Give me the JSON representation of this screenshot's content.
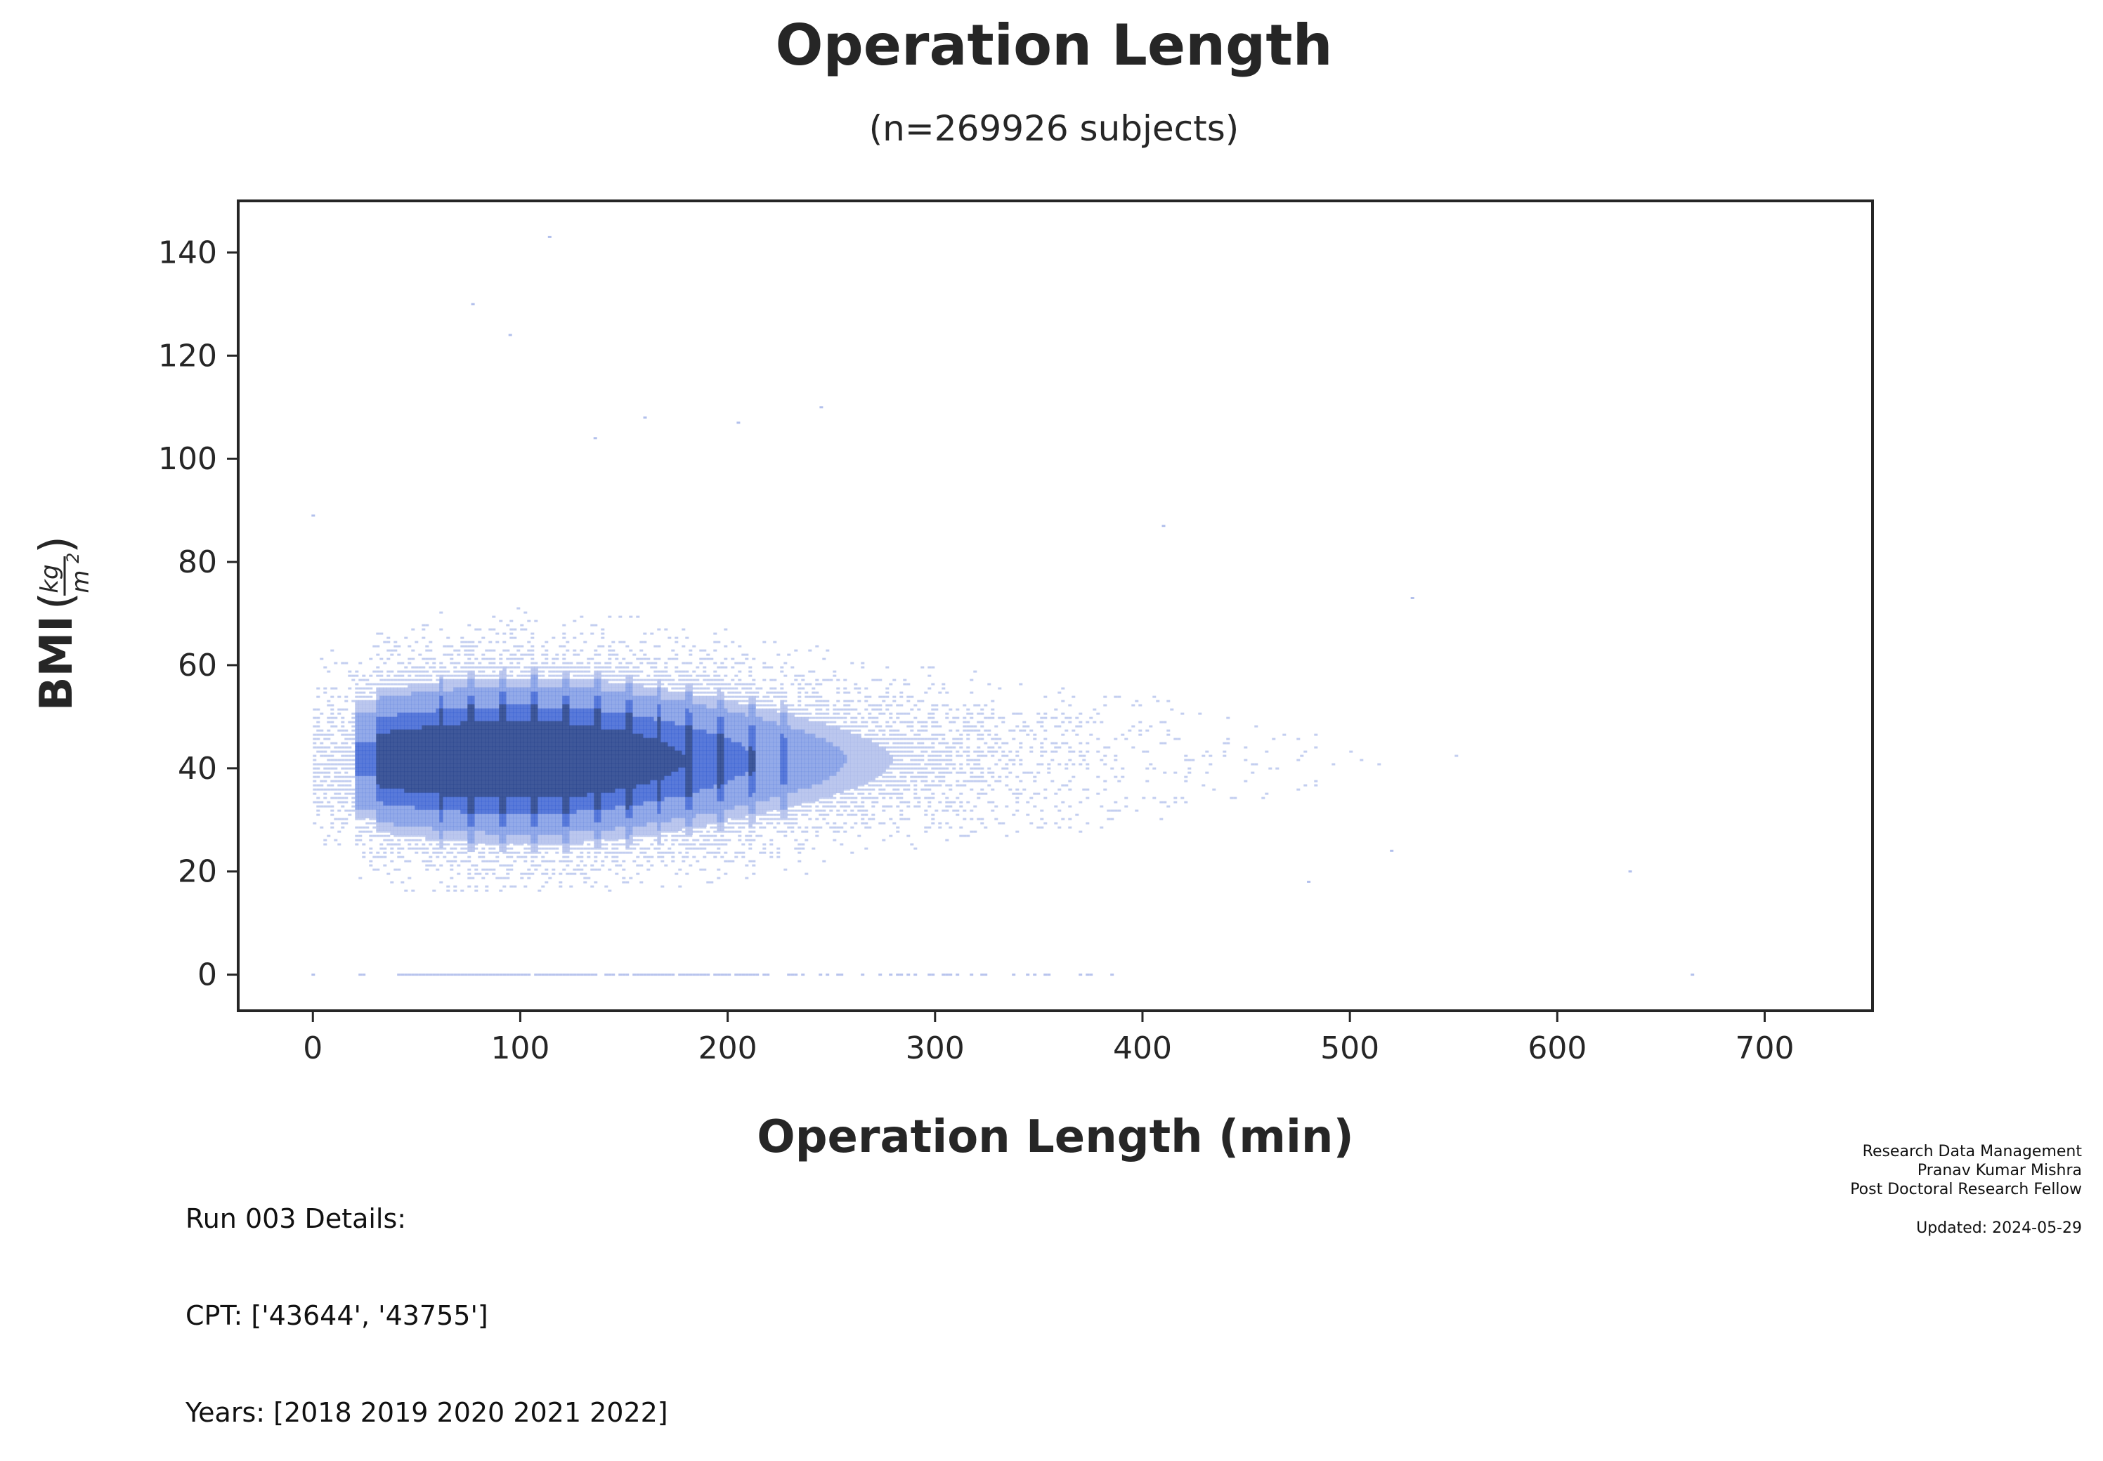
{
  "chart_data": {
    "type": "heatmap",
    "title": "Operation Length",
    "subtitle": "(n=269926 subjects)",
    "xlabel": "Operation Length (min)",
    "ylabel": "BMI",
    "ylabel_unit_num": "kg",
    "ylabel_unit_den": "m",
    "ylabel_unit_exp": "2",
    "xlim": [
      -36,
      752
    ],
    "ylim": [
      -7,
      150
    ],
    "x_ticks": [
      "0",
      "100",
      "200",
      "300",
      "400",
      "500",
      "600",
      "700"
    ],
    "y_ticks": [
      "0",
      "20",
      "40",
      "60",
      "80",
      "100",
      "120",
      "140"
    ],
    "grid": false,
    "colormap": [
      "#d7ddf2",
      "#aab9ea",
      "#6f8ee2",
      "#3c63d4",
      "#2a468f"
    ],
    "density_center": {
      "x": 100,
      "y": 42
    },
    "main_cloud": {
      "x_range": [
        0,
        720
      ],
      "y_range": [
        16,
        90
      ],
      "peak_x": 100,
      "peak_y": 42
    },
    "zero_bmi_band": {
      "y": 0,
      "x_range": [
        22,
        385
      ]
    },
    "outliers": [
      {
        "x": 114,
        "y": 143
      },
      {
        "x": 77,
        "y": 130
      },
      {
        "x": 95,
        "y": 124
      },
      {
        "x": 245,
        "y": 110
      },
      {
        "x": 160,
        "y": 108
      },
      {
        "x": 205,
        "y": 107
      },
      {
        "x": 136,
        "y": 104
      },
      {
        "x": 410,
        "y": 87
      },
      {
        "x": 665,
        "y": 0
      },
      {
        "x": 480,
        "y": 18
      },
      {
        "x": 530,
        "y": 73
      },
      {
        "x": 0,
        "y": 89
      },
      {
        "x": 0,
        "y": 0
      },
      {
        "x": 635,
        "y": 20
      },
      {
        "x": 520,
        "y": 24
      }
    ]
  },
  "footer": {
    "left": {
      "line1": "Run 003 Details:",
      "line2": "CPT: ['43644', '43755']",
      "line3": "Years: [2018 2019 2020 2021 2022]"
    },
    "right": {
      "line1": "Research Data Management",
      "line2": "Pranav Kumar Mishra",
      "line3": "Post Doctoral Research Fellow",
      "updated": "Updated: 2024-05-29"
    }
  }
}
